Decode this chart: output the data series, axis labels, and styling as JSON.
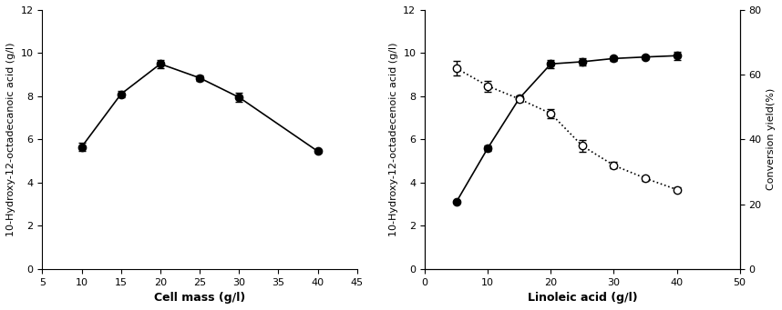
{
  "panel_A": {
    "x": [
      10,
      15,
      20,
      25,
      30,
      40
    ],
    "y": [
      5.65,
      8.1,
      9.5,
      8.85,
      7.95,
      5.45
    ],
    "yerr": [
      0.2,
      0.15,
      0.18,
      0.12,
      0.2,
      0.05
    ],
    "xlabel": "Cell mass (g/l)",
    "ylabel": "10-Hydroxy-12-octadecanoic acid (g/l)",
    "xlim": [
      5,
      45
    ],
    "xticks": [
      5,
      10,
      15,
      20,
      25,
      30,
      35,
      40,
      45
    ],
    "ylim": [
      0,
      12
    ],
    "yticks": [
      0,
      2,
      4,
      6,
      8,
      10,
      12
    ]
  },
  "panel_B": {
    "x_solid": [
      5,
      10,
      15,
      20,
      25,
      30,
      35,
      40
    ],
    "y_solid": [
      3.1,
      5.6,
      7.9,
      9.5,
      9.6,
      9.75,
      9.82,
      9.88
    ],
    "yerr_solid": [
      0.05,
      0.12,
      0.1,
      0.18,
      0.18,
      0.1,
      0.08,
      0.18
    ],
    "x_dotted": [
      5,
      10,
      15,
      20,
      25,
      30,
      35,
      40
    ],
    "y_dotted": [
      62.0,
      56.5,
      52.5,
      48.0,
      38.0,
      32.0,
      28.0,
      24.5
    ],
    "yerr_dotted": [
      2.3,
      1.7,
      1.0,
      1.3,
      1.7,
      1.0,
      0.7,
      0.8
    ],
    "xlabel": "Linoleic acid (g/l)",
    "ylabel_left": "10-Hydroxy-12-octadecenoic acid (g/l)",
    "ylabel_right": "Conversion yield(%)",
    "xlim": [
      0,
      50
    ],
    "xticks": [
      0,
      10,
      20,
      30,
      40,
      50
    ],
    "ylim_left": [
      0,
      12
    ],
    "yticks_left": [
      0,
      2,
      4,
      6,
      8,
      10,
      12
    ],
    "ylim_right": [
      0,
      80
    ],
    "yticks_right": [
      0,
      20,
      40,
      60,
      80
    ]
  },
  "markersize": 6,
  "capsize": 3,
  "elinewidth": 1.0,
  "linewidth": 1.2
}
